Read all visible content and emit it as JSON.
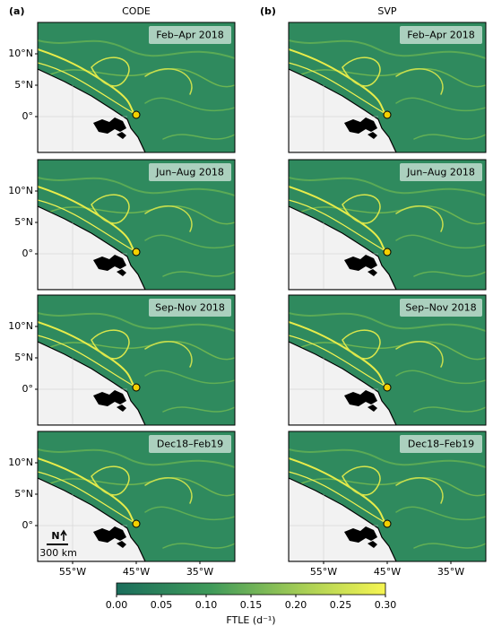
{
  "columns": [
    {
      "label": "(a)",
      "title": "CODE",
      "panels": [
        "Feb–Apr 2018",
        "Jun–Aug 2018",
        "Sep-Nov 2018",
        "Dec18–Feb19"
      ]
    },
    {
      "label": "(b)",
      "title": "SVP",
      "panels": [
        "Feb–Apr 2018",
        "Jun–Aug 2018",
        "Sep–Nov 2018",
        "Dec18–Feb19"
      ]
    }
  ],
  "y_tick_labels": [
    "10°N",
    "5°N",
    "0°"
  ],
  "x_tick_labels": [
    "55°W",
    "45°W",
    "35°W"
  ],
  "north_label": "N",
  "scale_bar_label": "300 km",
  "colorbar": {
    "label": "FTLE (d⁻¹)",
    "lim": [
      0,
      0.3
    ],
    "ticks": [
      {
        "value": 0,
        "label": "0.00"
      },
      {
        "value": 0.05,
        "label": "0.05"
      },
      {
        "value": 0.1,
        "label": "0.10"
      },
      {
        "value": 0.15,
        "label": "0.15"
      },
      {
        "value": 0.2,
        "label": "0.20"
      },
      {
        "value": 0.25,
        "label": "0.25"
      },
      {
        "value": 0.3,
        "label": "0.30"
      }
    ]
  }
}
